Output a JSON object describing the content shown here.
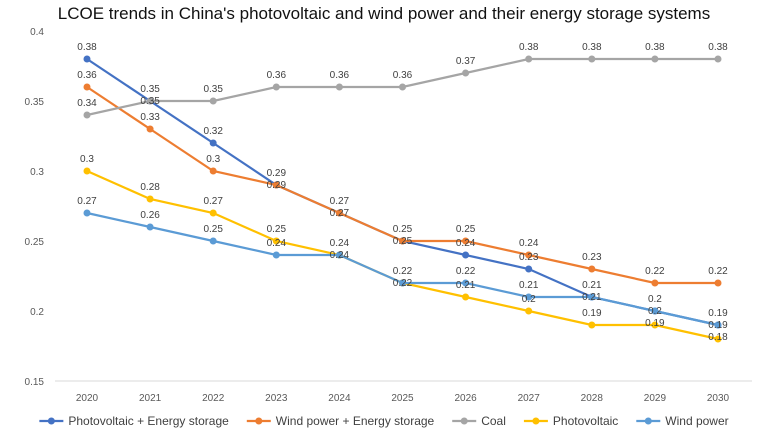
{
  "chart_data": {
    "type": "line",
    "title": "LCOE trends in China's photovoltaic and wind power and their energy storage systems",
    "x": [
      "2020",
      "2021",
      "2022",
      "2023",
      "2024",
      "2025",
      "2026",
      "2027",
      "2028",
      "2029",
      "2030"
    ],
    "ylim": [
      0.15,
      0.4
    ],
    "yticks": [
      "0.15",
      "0.2",
      "0.25",
      "0.3",
      "0.35",
      "0.4"
    ],
    "grid": false,
    "legend": "bottom",
    "series": [
      {
        "name": "Photovoltaic + Energy storage",
        "color": "#4472C4",
        "values": [
          0.38,
          0.35,
          0.32,
          0.29,
          0.27,
          0.25,
          0.24,
          0.23,
          0.21,
          0.2,
          0.19
        ]
      },
      {
        "name": "Wind power + Energy storage",
        "color": "#ED7D31",
        "values": [
          0.36,
          0.33,
          0.3,
          0.29,
          0.27,
          0.25,
          0.25,
          0.24,
          0.23,
          0.22,
          0.22
        ]
      },
      {
        "name": "Coal",
        "color": "#A5A5A5",
        "values": [
          0.34,
          0.35,
          0.35,
          0.36,
          0.36,
          0.36,
          0.37,
          0.38,
          0.38,
          0.38,
          0.38
        ]
      },
      {
        "name": "Photovoltaic",
        "color": "#FFC000",
        "values": [
          0.3,
          0.28,
          0.27,
          0.25,
          0.24,
          0.22,
          0.21,
          0.2,
          0.19,
          0.19,
          0.18
        ]
      },
      {
        "name": "Wind power",
        "color": "#5B9BD5",
        "values": [
          0.27,
          0.26,
          0.25,
          0.24,
          0.24,
          0.22,
          0.22,
          0.21,
          0.21,
          0.2,
          0.19
        ]
      }
    ]
  }
}
